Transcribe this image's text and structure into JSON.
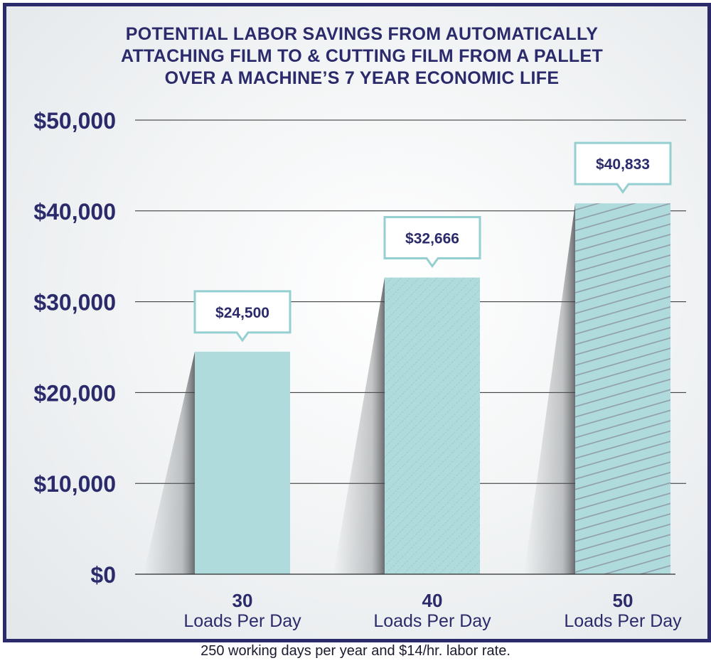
{
  "chart_data": {
    "type": "bar",
    "title": [
      "POTENTIAL LABOR SAVINGS FROM AUTOMATICALLY",
      "ATTACHING FILM TO & CUTTING FILM FROM A PALLET",
      "OVER A MACHINE’S 7 YEAR ECONOMIC LIFE"
    ],
    "categories": [
      {
        "value": "30",
        "label": "Loads Per Day"
      },
      {
        "value": "40",
        "label": "Loads Per Day"
      },
      {
        "value": "50",
        "label": "Loads Per Day"
      }
    ],
    "values": [
      24500,
      32666,
      40833
    ],
    "data_labels": [
      "$24,500",
      "$32,666",
      "$40,833"
    ],
    "ylim": [
      0,
      50000
    ],
    "yticks": [
      0,
      10000,
      20000,
      30000,
      40000,
      50000
    ],
    "ytick_labels": [
      "$0",
      "$10,000",
      "$20,000",
      "$30,000",
      "$40,000",
      "$50,000"
    ],
    "grid": true,
    "bar_color": "#b0dbdc",
    "callout_border": "#95cfd1",
    "footnote": "250 working days per year and $14/hr. labor rate."
  },
  "colors": {
    "frame": "#2b2a6b",
    "text": "#2b2a6b",
    "gridline": "#2a2a2a",
    "hatch": "#8f9bab"
  }
}
